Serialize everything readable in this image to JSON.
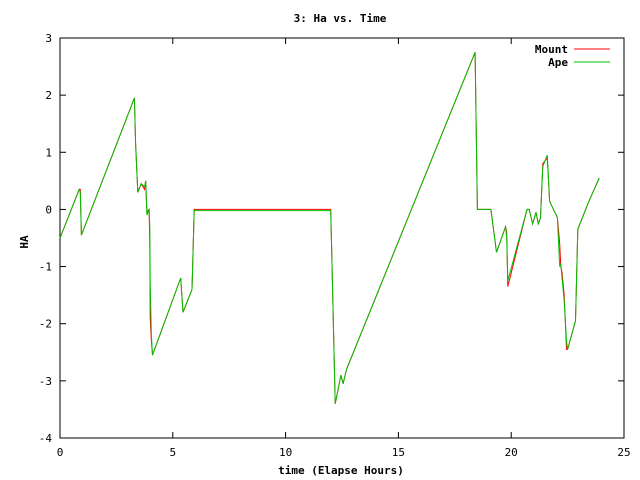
{
  "chart_data": {
    "type": "line",
    "title": "3: Ha vs. Time",
    "xlabel": "time (Elapse Hours)",
    "ylabel": "HA",
    "xlim": [
      0,
      25
    ],
    "ylim": [
      -4,
      3
    ],
    "xticks": [
      0,
      5,
      10,
      15,
      20,
      25
    ],
    "yticks": [
      -4,
      -3,
      -2,
      -1,
      0,
      1,
      2,
      3
    ],
    "grid": false,
    "legend_position": "top-right",
    "series": [
      {
        "name": "Mount",
        "color": "#ff0000",
        "x": [
          0,
          0.85,
          0.9,
          0.95,
          3.3,
          3.35,
          3.45,
          3.6,
          3.75,
          3.8,
          3.85,
          3.95,
          3.98,
          4.0,
          4.05,
          4.1,
          5.35,
          5.45,
          5.85,
          5.95,
          12.0,
          12.05,
          12.2,
          12.25,
          12.45,
          12.55,
          12.7,
          18.4,
          18.5,
          19.1,
          19.35,
          19.75,
          19.8,
          19.85,
          20.7,
          20.8,
          20.95,
          21.1,
          21.2,
          21.3,
          21.4,
          21.6,
          21.7,
          21.75,
          22.0,
          22.05,
          22.15,
          22.2,
          22.25,
          22.35,
          22.45,
          22.5,
          22.85,
          22.95,
          23.4,
          23.9
        ],
        "y": [
          -0.5,
          0.35,
          0.35,
          -0.45,
          1.95,
          1.15,
          0.3,
          0.45,
          0.35,
          0.5,
          -0.05,
          0.0,
          -0.6,
          -1.9,
          -2.3,
          -2.55,
          -1.2,
          -1.8,
          -1.4,
          0.0,
          0.0,
          -0.8,
          -3.4,
          -3.3,
          -2.9,
          -3.05,
          -2.8,
          2.75,
          0.0,
          0.0,
          -0.75,
          -0.3,
          -0.4,
          -1.35,
          0.0,
          0.0,
          -0.25,
          -0.05,
          -0.25,
          -0.15,
          0.8,
          0.9,
          0.15,
          0.1,
          -0.1,
          -0.15,
          -0.6,
          -1.0,
          -1.1,
          -1.5,
          -2.45,
          -2.45,
          -1.95,
          -0.35,
          0.1,
          0.55
        ]
      },
      {
        "name": "Ape",
        "color": "#00c000",
        "x": [
          0,
          0.85,
          0.9,
          0.95,
          3.3,
          3.35,
          3.45,
          3.6,
          3.75,
          3.8,
          3.85,
          3.95,
          3.98,
          4.0,
          4.05,
          4.1,
          5.35,
          5.45,
          5.85,
          5.95,
          12.0,
          12.05,
          12.2,
          12.25,
          12.45,
          12.55,
          12.7,
          18.4,
          18.5,
          19.1,
          19.35,
          19.75,
          19.8,
          19.85,
          20.7,
          20.8,
          20.95,
          21.1,
          21.2,
          21.3,
          21.4,
          21.6,
          21.7,
          21.75,
          22.0,
          22.05,
          22.15,
          22.2,
          22.25,
          22.35,
          22.45,
          22.5,
          22.85,
          22.95,
          23.4,
          23.9
        ],
        "y": [
          -0.5,
          0.35,
          0.3,
          -0.45,
          1.95,
          1.15,
          0.3,
          0.45,
          0.4,
          0.5,
          -0.1,
          0.0,
          -0.3,
          -1.3,
          -2.2,
          -2.55,
          -1.2,
          -1.8,
          -1.4,
          -0.02,
          -0.02,
          -0.8,
          -3.4,
          -3.3,
          -2.9,
          -3.05,
          -2.8,
          2.75,
          0.0,
          0.0,
          -0.75,
          -0.3,
          -0.5,
          -1.25,
          0.0,
          0.0,
          -0.25,
          -0.05,
          -0.25,
          -0.15,
          0.75,
          0.95,
          0.15,
          0.1,
          -0.1,
          -0.15,
          -1.0,
          -0.95,
          -1.2,
          -1.6,
          -2.3,
          -2.45,
          -1.95,
          -0.35,
          0.1,
          0.55
        ]
      }
    ]
  }
}
